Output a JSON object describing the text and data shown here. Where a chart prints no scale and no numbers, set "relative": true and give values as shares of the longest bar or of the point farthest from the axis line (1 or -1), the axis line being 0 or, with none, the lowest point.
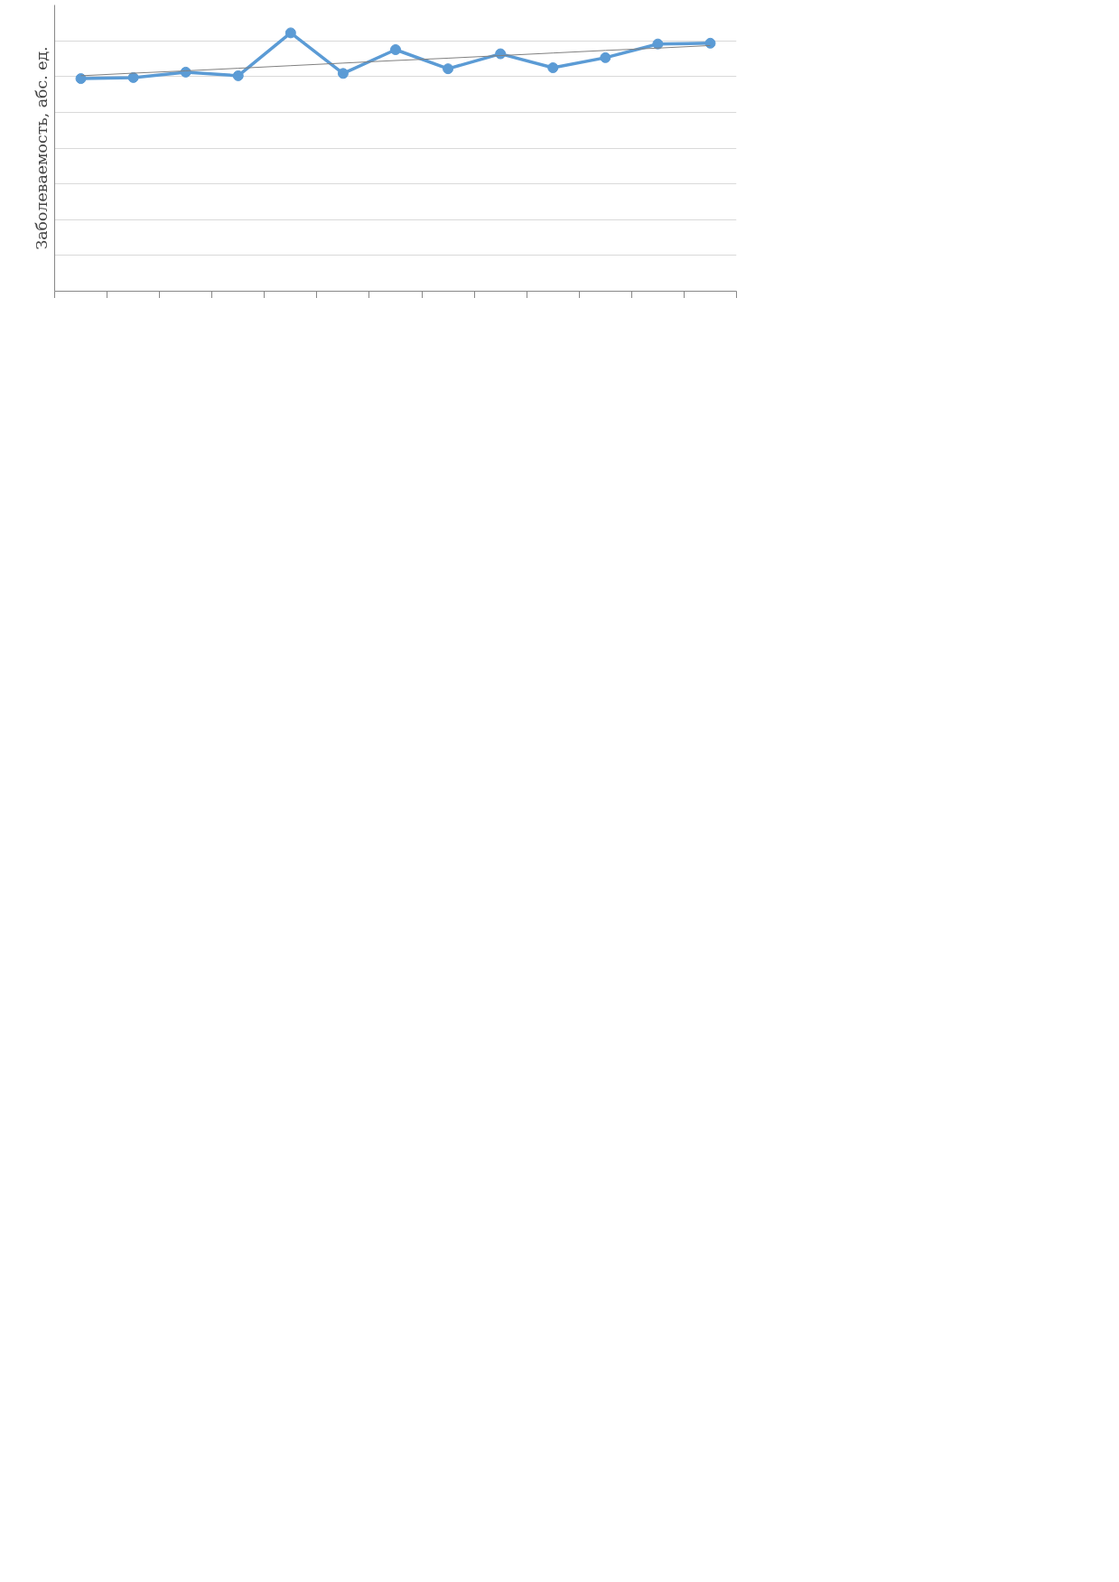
{
  "chart_data": {
    "type": "line",
    "ylabel": "Заболеваемость, абс. ед.",
    "relative": true,
    "grid": "y",
    "marker": "circle",
    "line_style": "solid",
    "categories": [
      null,
      null,
      null,
      null,
      null,
      null,
      null,
      null,
      null,
      null,
      null,
      null,
      null
    ],
    "series": [
      {
        "color": "#5b9bd5",
        "values": [
          0.823,
          0.827,
          0.848,
          0.834,
          1,
          0.843,
          0.935,
          0.861,
          0.919,
          0.865,
          0.904,
          0.957,
          0.96
        ]
      },
      {
        "type": "line",
        "marker": "none",
        "color": "#808080",
        "values": [
          0.834,
          0.844,
          0.853,
          0.863,
          0.873,
          0.883,
          0.893,
          0.902,
          0.912,
          0.922,
          0.932,
          0.941,
          0.951
        ]
      }
    ]
  }
}
